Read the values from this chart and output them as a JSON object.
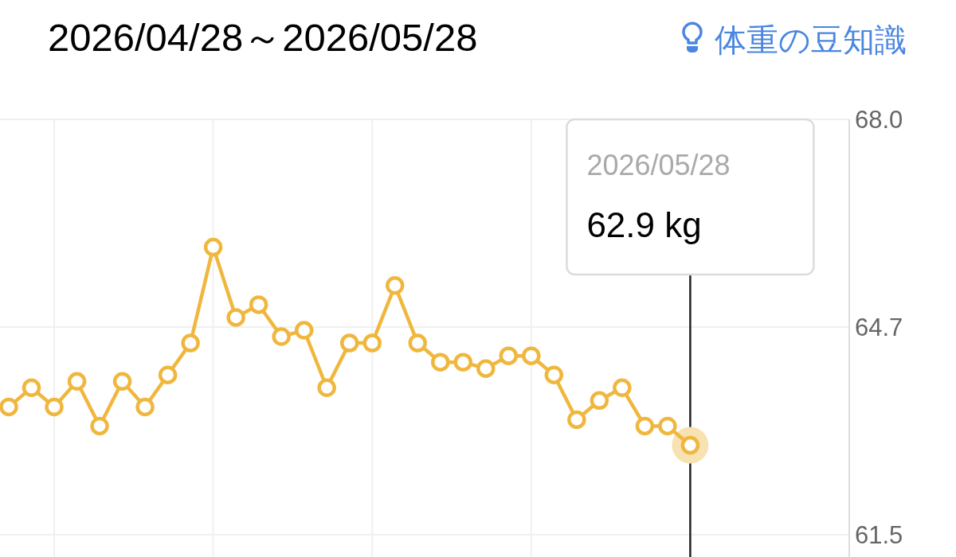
{
  "chart_data": {
    "type": "line",
    "title": "2026/04/28～2026/05/28",
    "annotations": [
      "体重の豆知識",
      "2026/05/28",
      "62.9 kg"
    ],
    "categories": [
      null,
      null,
      null,
      null,
      null,
      null,
      null,
      null,
      null,
      null,
      null,
      null,
      null,
      null,
      null,
      null,
      null,
      null,
      null,
      null,
      null,
      null,
      null,
      null,
      null,
      null,
      null,
      null,
      null,
      null,
      null
    ],
    "series": [
      {
        "color": "#f0b73e",
        "values": [
          63.5,
          63.8,
          63.5,
          63.9,
          63.2,
          63.9,
          63.5,
          64.0,
          64.5,
          66.0,
          64.9,
          65.1,
          64.6,
          64.7,
          63.8,
          64.5,
          64.5,
          65.4,
          64.5,
          64.2,
          64.2,
          64.1,
          64.3,
          64.3,
          64.0,
          63.3,
          63.6,
          63.8,
          63.2,
          63.2,
          62.9
        ]
      }
    ],
    "ylim": [
      61.5,
      68
    ],
    "yticks": [
      {
        "value": 68,
        "label": "68.0"
      },
      {
        "value": 64.75,
        "label": "64.7"
      },
      {
        "value": 61.5,
        "label": "61.5"
      }
    ],
    "grid": true,
    "marker": "circle",
    "line_style": "solid"
  }
}
